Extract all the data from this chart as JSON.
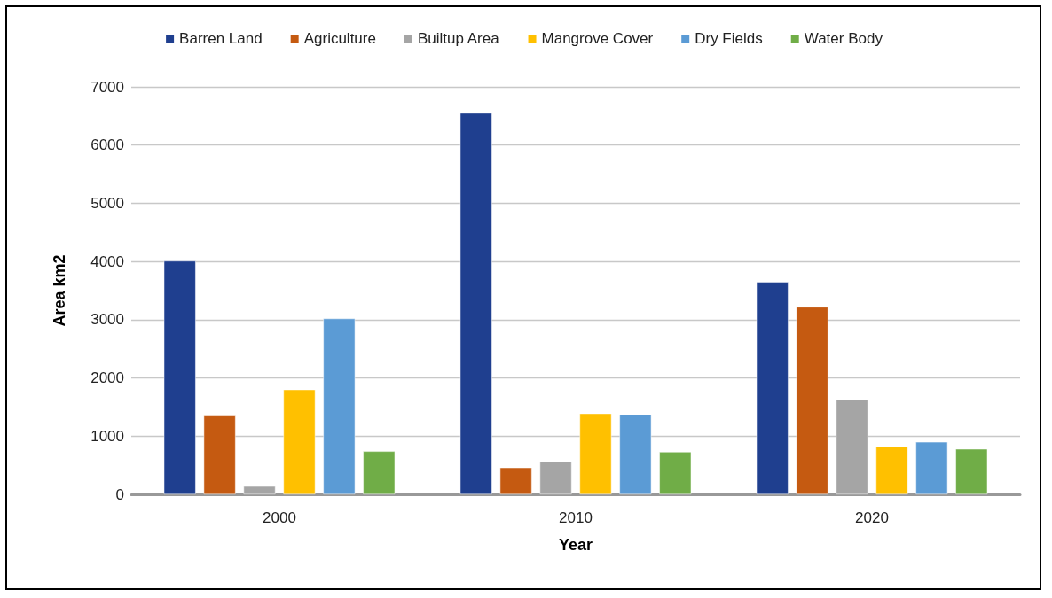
{
  "chart_data": {
    "type": "bar",
    "xlabel": "Year",
    "ylabel": "Area km2",
    "categories": [
      "2000",
      "2010",
      "2020"
    ],
    "series": [
      {
        "name": "Barren Land",
        "color": "#1f3f8f",
        "values": [
          4010,
          6550,
          3650
        ]
      },
      {
        "name": "Agriculture",
        "color": "#c55a11",
        "values": [
          1350,
          460,
          3220
        ]
      },
      {
        "name": "Builtup Area",
        "color": "#a5a5a5",
        "values": [
          140,
          560,
          1630
        ]
      },
      {
        "name": "Mangrove Cover",
        "color": "#ffc000",
        "values": [
          1800,
          1390,
          820
        ]
      },
      {
        "name": "Dry Fields",
        "color": "#5b9bd5",
        "values": [
          3020,
          1370,
          900
        ]
      },
      {
        "name": "Water Body",
        "color": "#70ad47",
        "values": [
          740,
          730,
          780
        ]
      }
    ],
    "ylim": [
      0,
      7000
    ],
    "yticks": [
      0,
      1000,
      2000,
      3000,
      4000,
      5000,
      6000,
      7000
    ],
    "grid": "y",
    "legend": "top"
  }
}
